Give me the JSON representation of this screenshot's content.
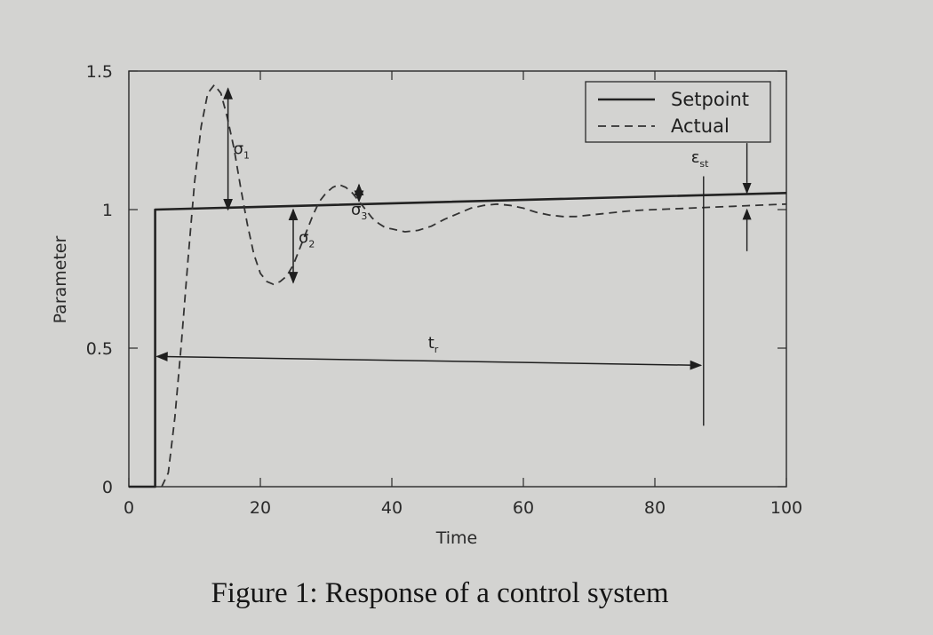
{
  "chart_data": {
    "type": "line",
    "xlabel": "Time",
    "ylabel": "Parameter",
    "xlim": [
      0,
      100
    ],
    "ylim": [
      0,
      1.5
    ],
    "xticks": [
      0,
      20,
      40,
      60,
      80,
      100
    ],
    "xtick_labels": [
      "0",
      "20",
      "40",
      "60",
      "80",
      "100"
    ],
    "yticks": [
      0,
      0.5,
      1,
      1.5
    ],
    "ytick_labels": [
      "0",
      "0.5",
      "1",
      "1.5"
    ],
    "grid": false,
    "legend_position": "top-right",
    "series": [
      {
        "name": "Setpoint",
        "style": "solid",
        "color": "#222222",
        "x": [
          0,
          4,
          4,
          100
        ],
        "y": [
          0,
          0,
          1,
          1.06
        ]
      },
      {
        "name": "Actual",
        "style": "dashed",
        "color": "#333333",
        "x": [
          5,
          6,
          7,
          8,
          9,
          10,
          11,
          12,
          13,
          14,
          15,
          16,
          17,
          18,
          19,
          20,
          21,
          22,
          23,
          24,
          25,
          26,
          27,
          28,
          29,
          30,
          31,
          32,
          33,
          34,
          35,
          36,
          37,
          38,
          39,
          40,
          42,
          44,
          46,
          48,
          50,
          52,
          54,
          56,
          58,
          60,
          62,
          64,
          66,
          68,
          70,
          72,
          74,
          76,
          78,
          80,
          82,
          84,
          86,
          88,
          90,
          92,
          94,
          96,
          98,
          100
        ],
        "y": [
          0,
          0.05,
          0.25,
          0.52,
          0.82,
          1.1,
          1.3,
          1.42,
          1.45,
          1.42,
          1.33,
          1.22,
          1.08,
          0.95,
          0.84,
          0.77,
          0.74,
          0.73,
          0.74,
          0.76,
          0.8,
          0.86,
          0.92,
          0.98,
          1.03,
          1.06,
          1.08,
          1.09,
          1.08,
          1.06,
          1.03,
          1.0,
          0.97,
          0.95,
          0.935,
          0.93,
          0.92,
          0.925,
          0.94,
          0.965,
          0.985,
          1.005,
          1.015,
          1.02,
          1.015,
          1.005,
          0.99,
          0.98,
          0.975,
          0.975,
          0.98,
          0.985,
          0.99,
          0.995,
          0.998,
          1.0,
          1.002,
          1.004,
          1.006,
          1.008,
          1.01,
          1.012,
          1.014,
          1.016,
          1.018,
          1.02
        ]
      }
    ],
    "annotations": [
      {
        "label": "σ1",
        "base": "σ",
        "sub": "1",
        "x": 14,
        "y_from": 1.0,
        "y_to": 1.45
      },
      {
        "label": "σ2",
        "base": "σ",
        "sub": "2",
        "x": 25,
        "y_from": 1.0,
        "y_to": 0.73
      },
      {
        "label": "σ3",
        "base": "σ",
        "sub": "3",
        "x": 35,
        "y_from": 1.03,
        "y_to": 1.09
      },
      {
        "label": "tr",
        "base": "t",
        "sub": "r",
        "x_from": 4,
        "x_to": 87,
        "y": 0.47
      },
      {
        "label": "εst",
        "base": "ε",
        "sub": "st",
        "x": 94,
        "y_from": 1.0,
        "y_to": 1.06
      }
    ]
  },
  "caption": "Figure 1: Response of a control system"
}
